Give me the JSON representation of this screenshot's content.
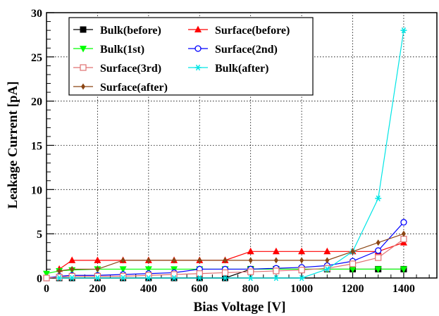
{
  "chart_data": {
    "type": "line",
    "xlabel": "Bias Voltage [V]",
    "ylabel": "Leakage Current [pA]",
    "xlim": [
      0,
      1530
    ],
    "ylim": [
      0,
      30
    ],
    "x_ticks": [
      "0",
      "200",
      "400",
      "600",
      "800",
      "1000",
      "1200",
      "1400"
    ],
    "y_ticks": [
      "0",
      "5",
      "10",
      "15",
      "20",
      "25",
      "30"
    ],
    "grid": true,
    "legend_position": "top-left",
    "series": [
      {
        "name": "Bulk(before)",
        "color": "#000000",
        "marker": "filled-square",
        "x": [
          50,
          100,
          200,
          300,
          400,
          500,
          600,
          700,
          800,
          900,
          1000,
          1100,
          1200,
          1300,
          1400
        ],
        "y": [
          0,
          0,
          0,
          0,
          0,
          0,
          0,
          0,
          1,
          1,
          1,
          1,
          1,
          1,
          1
        ]
      },
      {
        "name": "Surface(before)",
        "color": "#ff0000",
        "marker": "filled-triangle-up",
        "x": [
          50,
          100,
          200,
          300,
          400,
          500,
          600,
          700,
          800,
          900,
          1000,
          1100,
          1200,
          1300,
          1400
        ],
        "y": [
          1,
          2,
          2,
          2,
          2,
          2,
          2,
          2,
          3,
          3,
          3,
          3,
          3,
          3,
          4
        ]
      },
      {
        "name": "Bulk(1st)",
        "color": "#00ff00",
        "marker": "filled-triangle-down",
        "x": [
          0,
          50,
          100,
          200,
          300,
          400,
          500,
          600,
          700,
          800,
          900,
          1000,
          1100,
          1200,
          1300,
          1400
        ],
        "y": [
          0.5,
          0.8,
          0.9,
          1,
          1,
          1,
          1,
          1,
          1,
          1,
          1,
          1,
          1,
          1,
          1,
          1
        ]
      },
      {
        "name": "Surface(2nd)",
        "color": "#0000ff",
        "marker": "open-circle",
        "x": [
          0,
          50,
          100,
          200,
          300,
          400,
          500,
          600,
          700,
          800,
          900,
          1000,
          1100,
          1200,
          1300,
          1400
        ],
        "y": [
          0,
          0.2,
          0.3,
          0.3,
          0.4,
          0.5,
          0.6,
          1,
          1,
          1,
          1.1,
          1.2,
          1.4,
          1.9,
          3.1,
          6.3
        ]
      },
      {
        "name": "Surface(3rd)",
        "color": "#e07070",
        "marker": "open-square",
        "x": [
          0,
          50,
          100,
          200,
          300,
          400,
          500,
          600,
          700,
          800,
          900,
          1000,
          1100,
          1200,
          1300,
          1400
        ],
        "y": [
          0,
          0.1,
          0.2,
          0.2,
          0.2,
          0.3,
          0.4,
          0.5,
          0.6,
          0.7,
          0.8,
          0.9,
          1.1,
          1.6,
          2.3,
          4.4
        ]
      },
      {
        "name": "Bulk(after)",
        "color": "#00e5e5",
        "marker": "asterisk",
        "x": [
          50,
          100,
          200,
          300,
          400,
          500,
          600,
          700,
          800,
          900,
          1000,
          1100,
          1200,
          1300,
          1400
        ],
        "y": [
          0,
          0,
          0,
          0,
          0,
          0,
          0,
          0,
          0,
          0,
          0,
          1,
          3,
          9,
          28
        ]
      },
      {
        "name": "Surface(after)",
        "color": "#8b4513",
        "marker": "filled-diamond",
        "x": [
          50,
          100,
          200,
          300,
          400,
          500,
          600,
          700,
          800,
          900,
          1000,
          1100,
          1200,
          1300,
          1400
        ],
        "y": [
          0.8,
          1,
          1,
          2,
          2,
          2,
          2,
          2,
          2,
          2,
          2,
          2,
          3,
          4,
          5
        ]
      }
    ]
  }
}
